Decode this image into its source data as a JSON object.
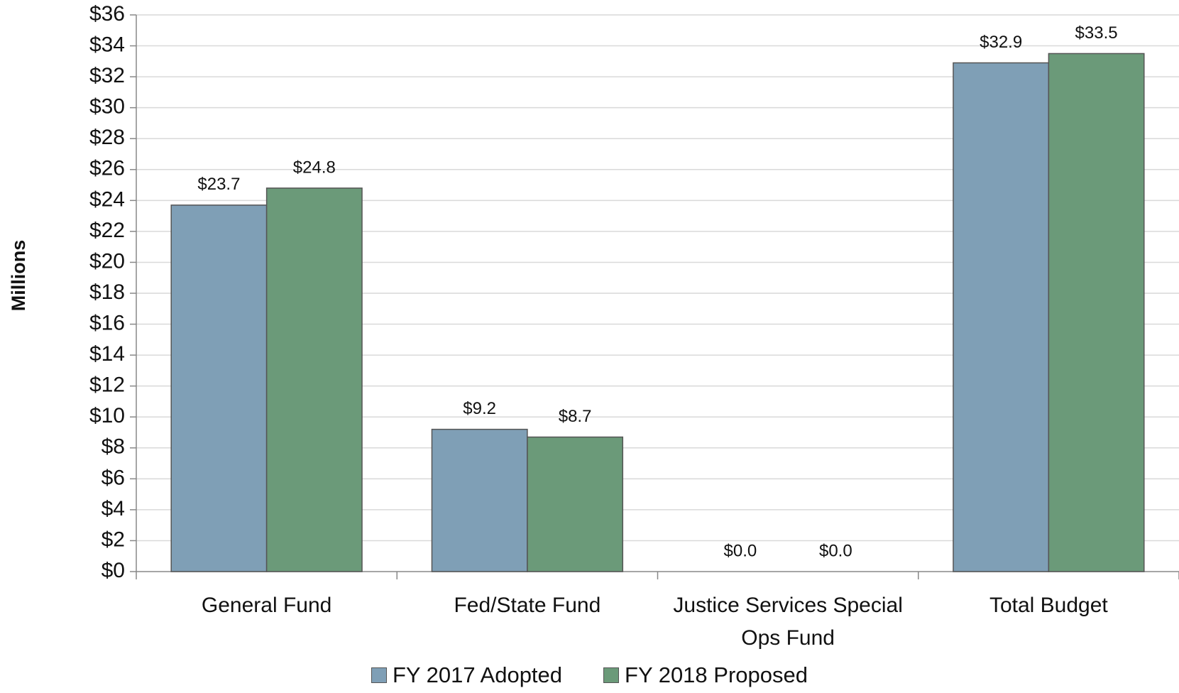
{
  "chart_data": {
    "type": "bar",
    "y_label": "Millions",
    "categories": [
      "General Fund",
      "Fed/State Fund",
      "Justice Services Special Ops Fund",
      "Total Budget"
    ],
    "series": [
      {
        "name": "FY 2017 Adopted",
        "color": "#7f9fb6",
        "values": [
          23.7,
          9.2,
          0.0,
          32.9
        ],
        "value_labels": [
          "$23.7",
          "$9.2",
          "$0.0",
          "$32.9"
        ]
      },
      {
        "name": "FY 2018 Proposed",
        "color": "#6b9a79",
        "values": [
          24.8,
          8.7,
          0.0,
          33.5
        ],
        "value_labels": [
          "$24.8",
          "$8.7",
          "$0.0",
          "$33.5"
        ]
      }
    ],
    "ylim": [
      0,
      36
    ],
    "yticks": [
      {
        "value": 0,
        "label": "$0"
      },
      {
        "value": 2,
        "label": "$2"
      },
      {
        "value": 4,
        "label": "$4"
      },
      {
        "value": 6,
        "label": "$6"
      },
      {
        "value": 8,
        "label": "$8"
      },
      {
        "value": 10,
        "label": "$10"
      },
      {
        "value": 12,
        "label": "$12"
      },
      {
        "value": 14,
        "label": "$14"
      },
      {
        "value": 16,
        "label": "$16"
      },
      {
        "value": 18,
        "label": "$18"
      },
      {
        "value": 20,
        "label": "$20"
      },
      {
        "value": 22,
        "label": "$22"
      },
      {
        "value": 24,
        "label": "$24"
      },
      {
        "value": 26,
        "label": "$26"
      },
      {
        "value": 28,
        "label": "$28"
      },
      {
        "value": 30,
        "label": "$30"
      },
      {
        "value": 32,
        "label": "$32"
      },
      {
        "value": 34,
        "label": "$34"
      },
      {
        "value": 36,
        "label": "$36"
      }
    ],
    "grid": true,
    "legend": "bottom"
  }
}
